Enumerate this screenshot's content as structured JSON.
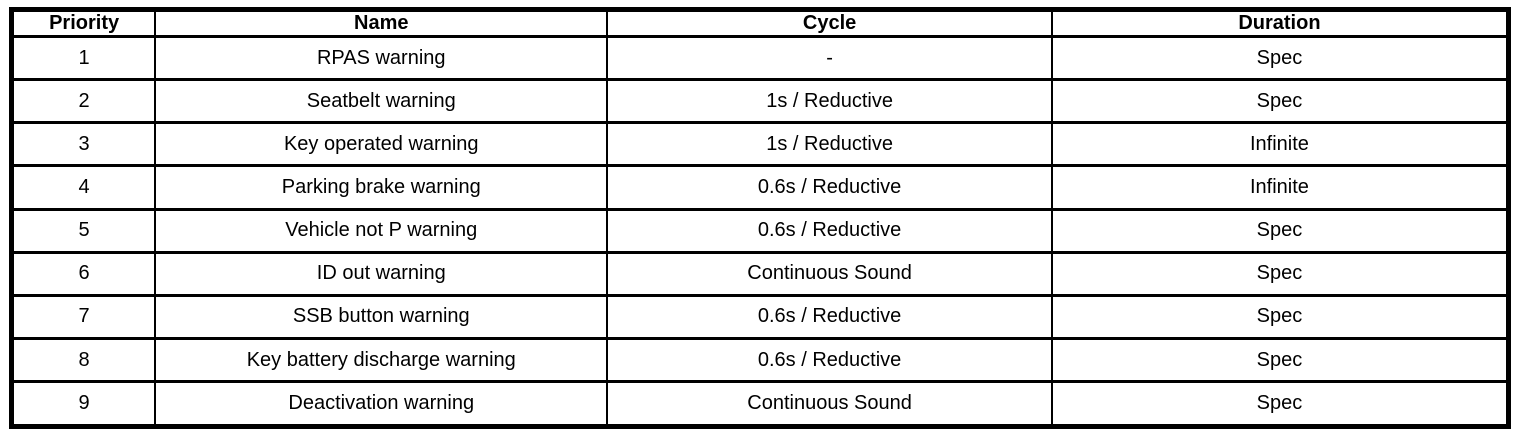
{
  "table": {
    "columns": [
      {
        "key": "priority",
        "label": "Priority"
      },
      {
        "key": "name",
        "label": "Name"
      },
      {
        "key": "cycle",
        "label": "Cycle"
      },
      {
        "key": "duration",
        "label": "Duration"
      }
    ],
    "rows": [
      {
        "priority": "1",
        "name": "RPAS warning",
        "cycle": "-",
        "duration": "Spec"
      },
      {
        "priority": "2",
        "name": "Seatbelt warning",
        "cycle": "1s / Reductive",
        "duration": "Spec"
      },
      {
        "priority": "3",
        "name": "Key operated warning",
        "cycle": "1s / Reductive",
        "duration": "Infinite"
      },
      {
        "priority": "4",
        "name": "Parking brake warning",
        "cycle": "0.6s / Reductive",
        "duration": "Infinite"
      },
      {
        "priority": "5",
        "name": "Vehicle not P warning",
        "cycle": "0.6s / Reductive",
        "duration": "Spec"
      },
      {
        "priority": "6",
        "name": "ID out warning",
        "cycle": "Continuous Sound",
        "duration": "Spec"
      },
      {
        "priority": "7",
        "name": "SSB button warning",
        "cycle": "0.6s / Reductive",
        "duration": "Spec"
      },
      {
        "priority": "8",
        "name": "Key battery discharge warning",
        "cycle": "0.6s / Reductive",
        "duration": "Spec"
      },
      {
        "priority": "9",
        "name": "Deactivation warning",
        "cycle": "Continuous Sound",
        "duration": "Spec"
      }
    ],
    "colors": {
      "border": "#000000",
      "background": "#ffffff",
      "text": "#000000"
    }
  }
}
